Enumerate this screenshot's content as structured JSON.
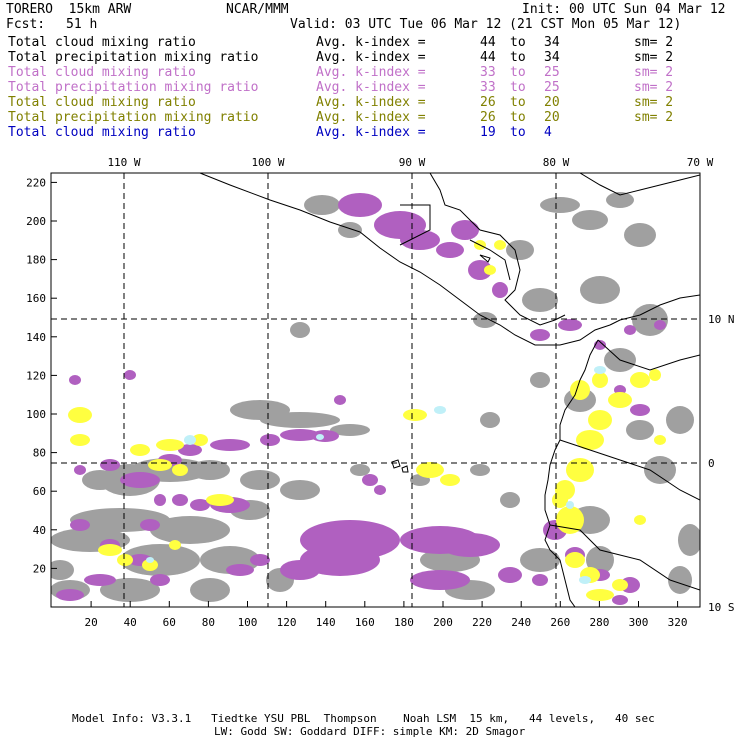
{
  "header": {
    "model": "TORERO  15km ARW",
    "org": "NCAR/MMM",
    "init": "Init: 00 UTC Sun 04 Mar 12",
    "fcst_label": "Fcst:",
    "fcst_value": "51 h",
    "valid": "Valid: 03 UTC Tue 06 Mar 12 (21 CST Mon 05 Mar 12)"
  },
  "legend": [
    {
      "field": "Total cloud mixing ratio",
      "kindex": "Avg. k-index =",
      "k1": "44",
      "to": "to",
      "k2": "34",
      "sm": "sm= 2",
      "color": "#000000"
    },
    {
      "field": "Total precipitation mixing ratio",
      "kindex": "Avg. k-index =",
      "k1": "44",
      "to": "to",
      "k2": "34",
      "sm": "sm= 2",
      "color": "#000000"
    },
    {
      "field": "Total cloud mixing ratio",
      "kindex": "Avg. k-index =",
      "k1": "33",
      "to": "to",
      "k2": "25",
      "sm": "sm= 2",
      "color": "#c070c8"
    },
    {
      "field": "Total precipitation mixing ratio",
      "kindex": "Avg. k-index =",
      "k1": "33",
      "to": "to",
      "k2": "25",
      "sm": "sm= 2",
      "color": "#c070c8"
    },
    {
      "field": "Total cloud mixing ratio",
      "kindex": "Avg. k-index =",
      "k1": "26",
      "to": "to",
      "k2": "20",
      "sm": "sm= 2",
      "color": "#808000"
    },
    {
      "field": "Total precipitation mixing ratio",
      "kindex": "Avg. k-index =",
      "k1": "26",
      "to": "to",
      "k2": "20",
      "sm": "sm= 2",
      "color": "#808000"
    },
    {
      "field": "Total cloud mixing ratio",
      "kindex": "Avg. k-index =",
      "k1": "19",
      "to": "to",
      "k2": "4",
      "sm": "",
      "color": "#0000c0"
    }
  ],
  "map": {
    "lon_labels": [
      "110 W",
      "100 W",
      "90 W",
      "80 W",
      "70 W"
    ],
    "lat_labels": [
      "10 N",
      "0",
      "10 S"
    ],
    "x_ticks": [
      "20",
      "40",
      "60",
      "80",
      "100",
      "120",
      "140",
      "160",
      "180",
      "200",
      "220",
      "240",
      "260",
      "280",
      "300",
      "320"
    ],
    "y_ticks": [
      "20",
      "40",
      "60",
      "80",
      "100",
      "120",
      "140",
      "160",
      "180",
      "200",
      "220"
    ],
    "colors": {
      "gray": "#a0a0a0",
      "magenta": "#b060c0",
      "yellow": "#ffff40",
      "cyan": "#c0f0f8"
    }
  },
  "footer": {
    "line1": "Model Info: V3.3.1   Tiedtke YSU PBL  Thompson    Noah LSM  15 km,   44 levels,   40 sec",
    "line2": "LW: Godd SW: Goddard DIFF: simple KM: 2D Smagor"
  }
}
